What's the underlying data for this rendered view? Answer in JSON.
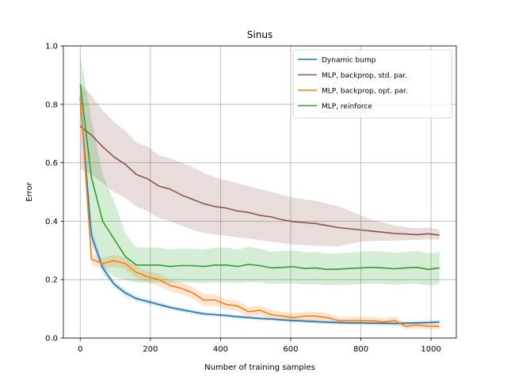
{
  "chart_data": {
    "type": "line",
    "title": "Sinus",
    "xlabel": "Number of training samples",
    "ylabel": "Error",
    "xlim": [
      -48,
      1072
    ],
    "ylim": [
      0.0,
      1.0
    ],
    "xticks": [
      0,
      200,
      400,
      600,
      800,
      1000
    ],
    "yticks": [
      0.0,
      0.2,
      0.4,
      0.6,
      0.8,
      1.0
    ],
    "grid": true,
    "legend_position": "top-right",
    "series": [
      {
        "name": "Dynamic bump",
        "color": "#1f77b4",
        "x": [
          0,
          32,
          64,
          96,
          128,
          160,
          192,
          224,
          256,
          288,
          320,
          352,
          384,
          416,
          448,
          480,
          512,
          544,
          576,
          608,
          640,
          672,
          704,
          736,
          768,
          800,
          832,
          864,
          896,
          928,
          960,
          992,
          1024
        ],
        "y": [
          0.82,
          0.35,
          0.24,
          0.185,
          0.155,
          0.135,
          0.125,
          0.115,
          0.105,
          0.097,
          0.09,
          0.083,
          0.08,
          0.077,
          0.073,
          0.07,
          0.067,
          0.065,
          0.062,
          0.06,
          0.058,
          0.056,
          0.054,
          0.053,
          0.052,
          0.052,
          0.051,
          0.051,
          0.05,
          0.051,
          0.052,
          0.053,
          0.055
        ],
        "lower": [
          0.8,
          0.32,
          0.225,
          0.175,
          0.145,
          0.127,
          0.117,
          0.107,
          0.098,
          0.09,
          0.083,
          0.077,
          0.074,
          0.071,
          0.067,
          0.064,
          0.061,
          0.059,
          0.056,
          0.054,
          0.052,
          0.05,
          0.048,
          0.047,
          0.046,
          0.046,
          0.045,
          0.045,
          0.044,
          0.045,
          0.046,
          0.047,
          0.049
        ],
        "upper": [
          0.84,
          0.38,
          0.255,
          0.195,
          0.165,
          0.143,
          0.133,
          0.123,
          0.112,
          0.104,
          0.097,
          0.089,
          0.086,
          0.083,
          0.079,
          0.076,
          0.073,
          0.071,
          0.068,
          0.066,
          0.064,
          0.062,
          0.06,
          0.059,
          0.058,
          0.058,
          0.057,
          0.057,
          0.056,
          0.057,
          0.058,
          0.059,
          0.061
        ]
      },
      {
        "name": "MLP, backprop, std. par.",
        "color": "#8c564b",
        "x": [
          0,
          32,
          64,
          96,
          128,
          160,
          192,
          224,
          256,
          288,
          320,
          352,
          384,
          416,
          448,
          480,
          512,
          544,
          576,
          608,
          640,
          672,
          704,
          736,
          768,
          800,
          832,
          864,
          896,
          928,
          960,
          992,
          1024
        ],
        "y": [
          0.725,
          0.695,
          0.655,
          0.62,
          0.595,
          0.56,
          0.545,
          0.52,
          0.51,
          0.49,
          0.475,
          0.46,
          0.45,
          0.445,
          0.435,
          0.43,
          0.42,
          0.415,
          0.405,
          0.398,
          0.395,
          0.392,
          0.385,
          0.378,
          0.374,
          0.37,
          0.366,
          0.362,
          0.358,
          0.356,
          0.354,
          0.357,
          0.352
        ],
        "lower": [
          0.58,
          0.56,
          0.53,
          0.5,
          0.48,
          0.45,
          0.435,
          0.41,
          0.4,
          0.385,
          0.37,
          0.36,
          0.355,
          0.35,
          0.345,
          0.34,
          0.335,
          0.33,
          0.325,
          0.32,
          0.318,
          0.316,
          0.315,
          0.314,
          0.322,
          0.33,
          0.332,
          0.333,
          0.333,
          0.335,
          0.336,
          0.338,
          0.337
        ],
        "upper": [
          0.87,
          0.83,
          0.78,
          0.74,
          0.71,
          0.67,
          0.655,
          0.625,
          0.615,
          0.6,
          0.585,
          0.565,
          0.55,
          0.54,
          0.53,
          0.52,
          0.51,
          0.5,
          0.49,
          0.48,
          0.475,
          0.47,
          0.46,
          0.45,
          0.435,
          0.42,
          0.405,
          0.395,
          0.385,
          0.38,
          0.376,
          0.378,
          0.371
        ]
      },
      {
        "name": "MLP, backprop, opt. par.",
        "color": "#ff7f0e",
        "x": [
          0,
          32,
          64,
          96,
          128,
          160,
          192,
          224,
          256,
          288,
          320,
          352,
          384,
          416,
          448,
          480,
          512,
          544,
          576,
          608,
          640,
          672,
          704,
          736,
          768,
          800,
          832,
          864,
          896,
          928,
          960,
          992,
          1024
        ],
        "y": [
          0.83,
          0.27,
          0.255,
          0.265,
          0.255,
          0.225,
          0.21,
          0.2,
          0.18,
          0.17,
          0.155,
          0.13,
          0.13,
          0.115,
          0.11,
          0.09,
          0.095,
          0.08,
          0.075,
          0.07,
          0.075,
          0.075,
          0.07,
          0.06,
          0.06,
          0.06,
          0.06,
          0.055,
          0.06,
          0.04,
          0.045,
          0.04,
          0.04
        ],
        "lower": [
          0.8,
          0.25,
          0.235,
          0.245,
          0.235,
          0.205,
          0.19,
          0.18,
          0.16,
          0.15,
          0.135,
          0.11,
          0.11,
          0.097,
          0.092,
          0.074,
          0.078,
          0.065,
          0.06,
          0.055,
          0.06,
          0.06,
          0.055,
          0.047,
          0.047,
          0.047,
          0.047,
          0.042,
          0.047,
          0.03,
          0.034,
          0.03,
          0.03
        ],
        "upper": [
          0.86,
          0.29,
          0.275,
          0.285,
          0.275,
          0.245,
          0.23,
          0.22,
          0.2,
          0.19,
          0.175,
          0.15,
          0.15,
          0.133,
          0.128,
          0.106,
          0.112,
          0.095,
          0.09,
          0.085,
          0.09,
          0.09,
          0.085,
          0.073,
          0.073,
          0.073,
          0.073,
          0.068,
          0.073,
          0.05,
          0.056,
          0.05,
          0.05
        ]
      },
      {
        "name": "MLP, reinforce",
        "color": "#2ca02c",
        "x": [
          0,
          32,
          64,
          96,
          128,
          160,
          192,
          224,
          256,
          288,
          320,
          352,
          384,
          416,
          448,
          480,
          512,
          544,
          576,
          608,
          640,
          672,
          704,
          736,
          768,
          800,
          832,
          864,
          896,
          928,
          960,
          992,
          1024
        ],
        "y": [
          0.87,
          0.55,
          0.4,
          0.34,
          0.28,
          0.25,
          0.25,
          0.25,
          0.245,
          0.248,
          0.248,
          0.245,
          0.25,
          0.25,
          0.245,
          0.252,
          0.248,
          0.24,
          0.242,
          0.244,
          0.238,
          0.24,
          0.235,
          0.236,
          0.238,
          0.24,
          0.242,
          0.24,
          0.237,
          0.24,
          0.242,
          0.235,
          0.24
        ],
        "lower": [
          0.77,
          0.35,
          0.24,
          0.21,
          0.2,
          0.19,
          0.19,
          0.19,
          0.188,
          0.19,
          0.19,
          0.188,
          0.19,
          0.19,
          0.188,
          0.192,
          0.19,
          0.185,
          0.186,
          0.187,
          0.183,
          0.185,
          0.181,
          0.182,
          0.183,
          0.185,
          0.186,
          0.185,
          0.182,
          0.185,
          0.186,
          0.18,
          0.185
        ],
        "upper": [
          0.97,
          0.75,
          0.56,
          0.47,
          0.36,
          0.31,
          0.31,
          0.31,
          0.303,
          0.306,
          0.306,
          0.303,
          0.31,
          0.31,
          0.303,
          0.312,
          0.306,
          0.295,
          0.298,
          0.3,
          0.293,
          0.295,
          0.289,
          0.29,
          0.293,
          0.295,
          0.298,
          0.295,
          0.292,
          0.295,
          0.298,
          0.29,
          0.295
        ]
      }
    ]
  }
}
